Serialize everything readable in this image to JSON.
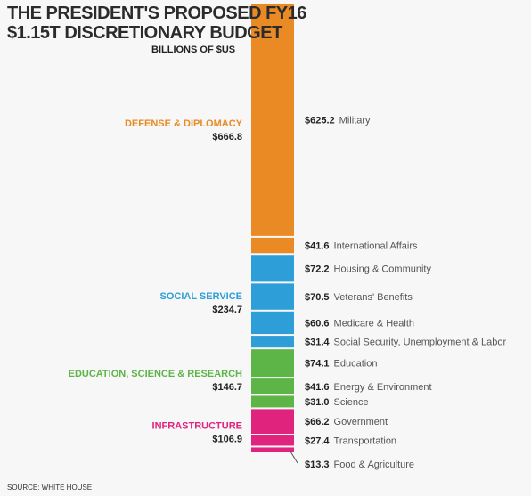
{
  "header": {
    "title_line1": "THE PRESIDENT'S PROPOSED FY16",
    "title_line2": "$1.15T DISCRETIONARY BUDGET",
    "units": "BILLIONS OF $US"
  },
  "source": "SOURCE: WHITE HOUSE",
  "chart_data": {
    "type": "bar",
    "orientation": "stacked-vertical",
    "title": "THE PRESIDENT'S PROPOSED FY16 $1.15T DISCRETIONARY BUDGET",
    "unit": "BILLIONS OF $US",
    "groups": [
      {
        "name": "DEFENSE & DIPLOMACY",
        "total": "$666.8",
        "color": "#e98a25",
        "items": [
          {
            "value": 625.2,
            "value_label": "$625.2",
            "label": "Military"
          },
          {
            "value": 41.6,
            "value_label": "$41.6",
            "label": "International Affairs"
          }
        ]
      },
      {
        "name": "SOCIAL SERVICE",
        "total": "$234.7",
        "color": "#2d9ed8",
        "items": [
          {
            "value": 72.2,
            "value_label": "$72.2",
            "label": "Housing & Community"
          },
          {
            "value": 70.5,
            "value_label": "$70.5",
            "label": "Veterans' Benefits"
          },
          {
            "value": 60.6,
            "value_label": "$60.6",
            "label": "Medicare & Health"
          },
          {
            "value": 31.4,
            "value_label": "$31.4",
            "label": "Social Security, Unemployment & Labor"
          }
        ]
      },
      {
        "name": "EDUCATION, SCIENCE & RESEARCH",
        "total": "$146.7",
        "color": "#5cb546",
        "items": [
          {
            "value": 74.1,
            "value_label": "$74.1",
            "label": "Education"
          },
          {
            "value": 41.6,
            "value_label": "$41.6",
            "label": "Energy & Environment"
          },
          {
            "value": 31.0,
            "value_label": "$31.0",
            "label": "Science"
          }
        ]
      },
      {
        "name": "INFRASTRUCTURE",
        "total": "$106.9",
        "color": "#e0247e",
        "items": [
          {
            "value": 66.2,
            "value_label": "$66.2",
            "label": "Government"
          },
          {
            "value": 27.4,
            "value_label": "$27.4",
            "label": "Transportation"
          },
          {
            "value": 13.3,
            "value_label": "$13.3",
            "label": "Food & Agriculture"
          }
        ]
      }
    ]
  }
}
